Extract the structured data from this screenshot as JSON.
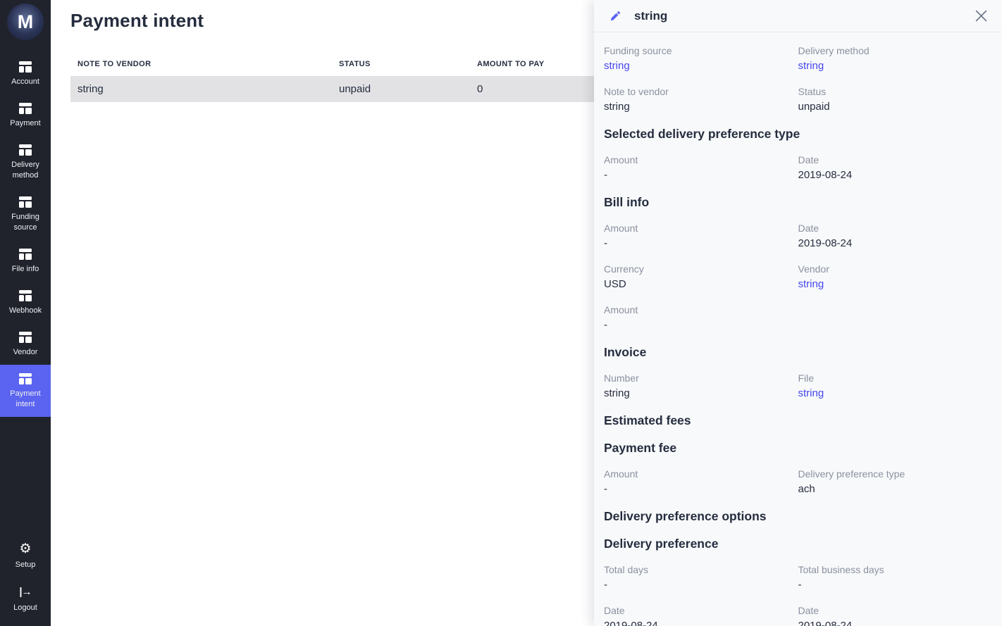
{
  "colors": {
    "accent": "#5b64f0",
    "sidebar_bg": "#20232c",
    "link": "#4646ef",
    "row_highlight": "#e2e2e4",
    "text_dark": "#252d3e",
    "label_gray": "#8a919e",
    "panel_bg": "#f8f9fb"
  },
  "sidebar": {
    "logo_letter": "M",
    "items": [
      {
        "label": "Account",
        "icon": "table-icon",
        "active": false
      },
      {
        "label": "Payment",
        "icon": "table-icon",
        "active": false
      },
      {
        "label": "Delivery method",
        "icon": "table-icon",
        "active": false
      },
      {
        "label": "Funding source",
        "icon": "table-icon",
        "active": false
      },
      {
        "label": "File info",
        "icon": "table-icon",
        "active": false
      },
      {
        "label": "Webhook",
        "icon": "table-icon",
        "active": false
      },
      {
        "label": "Vendor",
        "icon": "table-icon",
        "active": false
      },
      {
        "label": "Payment intent",
        "icon": "table-icon",
        "active": true
      }
    ],
    "footer_items": [
      {
        "label": "Setup",
        "icon": "gear-icon"
      },
      {
        "label": "Logout",
        "icon": "logout-icon"
      }
    ]
  },
  "main": {
    "title": "Payment intent",
    "table": {
      "columns": [
        "Note to vendor",
        "Status",
        "Amount to pay"
      ],
      "rows": [
        {
          "cells": [
            "string",
            "unpaid",
            "0"
          ],
          "selected": true
        }
      ]
    }
  },
  "panel": {
    "title": "string",
    "edit_icon": "pencil-icon",
    "close_icon": "close-icon",
    "blocks": [
      {
        "type": "fields",
        "fields": [
          {
            "label": "Funding source",
            "value": "string",
            "link": true
          },
          {
            "label": "Delivery method",
            "value": "string",
            "link": true
          }
        ]
      },
      {
        "type": "fields",
        "fields": [
          {
            "label": "Note to vendor",
            "value": "string",
            "link": false
          },
          {
            "label": "Status",
            "value": "unpaid",
            "link": false
          }
        ]
      },
      {
        "type": "heading",
        "text": "Selected delivery preference type"
      },
      {
        "type": "fields",
        "fields": [
          {
            "label": "Amount",
            "value": "-",
            "link": false
          },
          {
            "label": "Date",
            "value": "2019-08-24",
            "link": false
          }
        ]
      },
      {
        "type": "heading",
        "text": "Bill info"
      },
      {
        "type": "fields",
        "fields": [
          {
            "label": "Amount",
            "value": "-",
            "link": false
          },
          {
            "label": "Date",
            "value": "2019-08-24",
            "link": false
          }
        ]
      },
      {
        "type": "fields",
        "fields": [
          {
            "label": "Currency",
            "value": "USD",
            "link": false
          },
          {
            "label": "Vendor",
            "value": "string",
            "link": true
          }
        ]
      },
      {
        "type": "fields",
        "fields": [
          {
            "label": "Amount",
            "value": "-",
            "link": false
          }
        ]
      },
      {
        "type": "heading",
        "text": "Invoice"
      },
      {
        "type": "fields",
        "fields": [
          {
            "label": "Number",
            "value": "string",
            "link": false
          },
          {
            "label": "File",
            "value": "string",
            "link": true
          }
        ]
      },
      {
        "type": "heading",
        "text": "Estimated fees"
      },
      {
        "type": "heading",
        "text": "Payment fee"
      },
      {
        "type": "fields",
        "fields": [
          {
            "label": "Amount",
            "value": "-",
            "link": false
          },
          {
            "label": "Delivery preference type",
            "value": "ach",
            "link": false
          }
        ]
      },
      {
        "type": "heading",
        "text": "Delivery preference options"
      },
      {
        "type": "heading",
        "text": "Delivery preference"
      },
      {
        "type": "fields",
        "fields": [
          {
            "label": "Total days",
            "value": "-",
            "link": false
          },
          {
            "label": "Total business days",
            "value": "-",
            "link": false
          }
        ]
      },
      {
        "type": "fields",
        "fields": [
          {
            "label": "Date",
            "value": "2019-08-24",
            "link": false
          },
          {
            "label": "Date",
            "value": "2019-08-24",
            "link": false
          }
        ]
      }
    ]
  }
}
